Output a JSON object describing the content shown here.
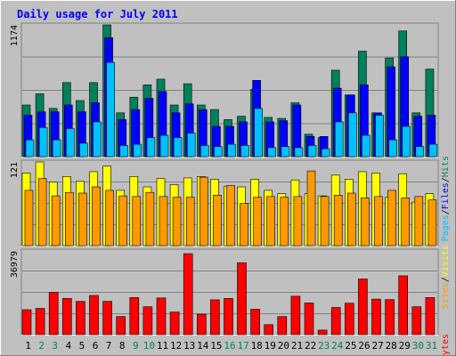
{
  "chart_data": {
    "type": "bar",
    "title": "Daily usage for July 2011",
    "x": [
      "1",
      "2",
      "3",
      "4",
      "5",
      "6",
      "7",
      "8",
      "9",
      "10",
      "11",
      "12",
      "13",
      "14",
      "15",
      "16",
      "17",
      "18",
      "19",
      "20",
      "21",
      "22",
      "23",
      "24",
      "25",
      "26",
      "27",
      "28",
      "29",
      "30",
      "31"
    ],
    "weekend_days": [
      2,
      3,
      9,
      10,
      16,
      17,
      23,
      24,
      30,
      31
    ],
    "panels": [
      {
        "id": "pfh",
        "max_label": "1174",
        "ymax": 1174,
        "series": [
          {
            "name": "Hits",
            "color": "#00805c",
            "values": [
              460,
              560,
              430,
              660,
              500,
              660,
              1174,
              390,
              530,
              640,
              690,
              460,
              650,
              460,
              420,
              330,
              360,
              600,
              350,
              340,
              480,
              200,
              170,
              770,
              550,
              940,
              390,
              880,
              1120,
              390,
              780
            ]
          },
          {
            "name": "Files",
            "color": "#0000ff",
            "values": [
              370,
              400,
              400,
              460,
              400,
              480,
              1060,
              330,
              420,
              520,
              580,
              390,
              470,
              420,
              270,
              270,
              310,
              680,
              310,
              320,
              460,
              180,
              180,
              610,
              550,
              640,
              390,
              800,
              890,
              360,
              370
            ]
          },
          {
            "name": "Pages",
            "color": "#00c0ff",
            "values": [
              150,
              260,
              150,
              250,
              120,
              310,
              840,
              100,
              110,
              170,
              190,
              170,
              210,
              100,
              90,
              110,
              100,
              430,
              80,
              90,
              80,
              100,
              70,
              310,
              390,
              190,
              370,
              150,
              270,
              90,
              110
            ]
          }
        ]
      },
      {
        "id": "vs",
        "max_label": "121",
        "ymax": 121,
        "series": [
          {
            "name": "Visits",
            "color": "#ffff00",
            "values": [
              105,
              121,
              92,
              100,
              93,
              107,
              115,
              80,
              100,
              85,
              97,
              88,
              98,
              100,
              96,
              86,
              85,
              96,
              80,
              75,
              95,
              75,
              72,
              102,
              96,
              107,
              105,
              70,
              104,
              63,
              75
            ]
          },
          {
            "name": "Sites",
            "color": "#ff9900",
            "values": [
              80,
              97,
              72,
              77,
              76,
              85,
              80,
              72,
              71,
              77,
              71,
              70,
              70,
              99,
              73,
              87,
              61,
              70,
              71,
              70,
              71,
              108,
              71,
              73,
              76,
              69,
              71,
              80,
              69,
              71,
              66
            ]
          }
        ]
      },
      {
        "id": "kb",
        "max_label": "36979",
        "ymax": 36979,
        "series": [
          {
            "name": "KBytes",
            "color": "#ff0000",
            "values": [
              11000,
              11600,
              18700,
              16000,
              14700,
              17300,
              14700,
              8000,
              16400,
              12300,
              16200,
              10000,
              35800,
              9000,
              15400,
              16000,
              31800,
              11200,
              4400,
              8000,
              17000,
              14000,
              2000,
              12000,
              13900,
              24600,
              15700,
              15500,
              26000,
              12300,
              16400
            ]
          }
        ]
      }
    ]
  }
}
